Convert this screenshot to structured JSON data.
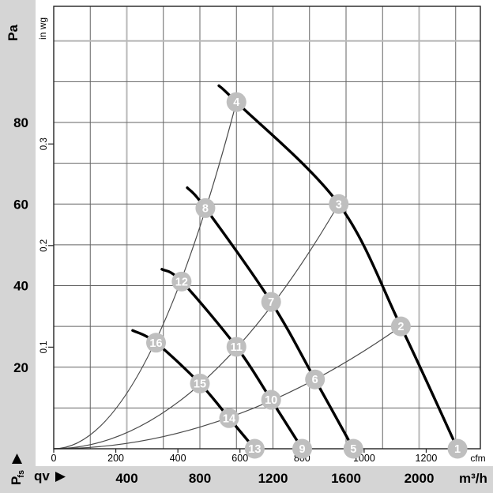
{
  "labels": {
    "y_primary_title": "Pa",
    "y_secondary_title": "in wg",
    "x_flow_symbol": "qv",
    "corner_main": "P",
    "corner_sub": "fs",
    "x_unit_primary": "cfm",
    "x_unit_secondary": "m³/h"
  },
  "colors": {
    "background": "#d5d5d5",
    "panel": "#ffffff",
    "grid_dark": "#636363",
    "grid_light": "#b9b9b9",
    "axis": "#222222",
    "fan_curve": "#000000",
    "system_line": "#4a4a4a",
    "marker_fill": "#bfbfbf",
    "marker_text": "#ffffff",
    "text": "#000000"
  },
  "chart_data": {
    "type": "line",
    "title": "",
    "x_axis": {
      "label": "qv",
      "primary_unit": "cfm",
      "secondary_unit": "m³/h",
      "cfm_ticks": [
        0,
        200,
        400,
        600,
        800,
        1000,
        1200
      ],
      "m3h_ticks": [
        400,
        800,
        1200,
        1600,
        2000
      ],
      "m3h_grid": {
        "step": 200,
        "max": 2200,
        "light": [
          400,
          2000
        ]
      },
      "m3h_range": [
        0,
        2335
      ]
    },
    "y_axis": {
      "label": "Pfs",
      "primary_unit": "Pa",
      "secondary_unit": "in wg",
      "pa_ticks": [
        80,
        60,
        40,
        20
      ],
      "inwg_ticks": [
        0.3,
        0.2,
        0.1
      ],
      "pa_grid": {
        "step": 10,
        "max": 100,
        "light": [
          100
        ]
      },
      "pa_range": [
        0,
        108
      ]
    },
    "unit_conversion": {
      "pa_per_inwg": 249.09,
      "cfm_per_m3h": 0.5886
    },
    "operating_points": [
      {
        "id": 1,
        "m3h": 2210,
        "pa": 0
      },
      {
        "id": 2,
        "m3h": 1900,
        "pa": 30
      },
      {
        "id": 3,
        "m3h": 1560,
        "pa": 60
      },
      {
        "id": 4,
        "m3h": 1000,
        "pa": 85
      },
      {
        "id": 5,
        "m3h": 1640,
        "pa": 0
      },
      {
        "id": 6,
        "m3h": 1430,
        "pa": 17
      },
      {
        "id": 7,
        "m3h": 1190,
        "pa": 36
      },
      {
        "id": 8,
        "m3h": 830,
        "pa": 59
      },
      {
        "id": 9,
        "m3h": 1360,
        "pa": 0
      },
      {
        "id": 10,
        "m3h": 1190,
        "pa": 12
      },
      {
        "id": 11,
        "m3h": 1000,
        "pa": 25
      },
      {
        "id": 12,
        "m3h": 700,
        "pa": 41
      },
      {
        "id": 13,
        "m3h": 1100,
        "pa": 0
      },
      {
        "id": 14,
        "m3h": 960,
        "pa": 7.5
      },
      {
        "id": 15,
        "m3h": 800,
        "pa": 16
      },
      {
        "id": 16,
        "m3h": 560,
        "pa": 26
      }
    ],
    "fan_curves": [
      {
        "name": "fan-curve-1",
        "marker_ids": [
          4,
          3,
          2,
          1
        ],
        "points": [
          [
            904,
            89
          ],
          [
            1000,
            85
          ],
          [
            1560,
            60
          ],
          [
            1900,
            30
          ],
          [
            2210,
            0
          ]
        ]
      },
      {
        "name": "fan-curve-2",
        "marker_ids": [
          8,
          7,
          6,
          5
        ],
        "points": [
          [
            731,
            64
          ],
          [
            830,
            59
          ],
          [
            1190,
            36
          ],
          [
            1430,
            17
          ],
          [
            1640,
            0
          ]
        ]
      },
      {
        "name": "fan-curve-3",
        "marker_ids": [
          12,
          11,
          10,
          9
        ],
        "points": [
          [
            592,
            44
          ],
          [
            700,
            41
          ],
          [
            1000,
            25
          ],
          [
            1190,
            12
          ],
          [
            1360,
            0
          ]
        ]
      },
      {
        "name": "fan-curve-4",
        "marker_ids": [
          16,
          15,
          14,
          13
        ],
        "points": [
          [
            432,
            29
          ],
          [
            560,
            26
          ],
          [
            800,
            16
          ],
          [
            960,
            7.5
          ],
          [
            1100,
            0
          ]
        ]
      }
    ],
    "system_lines": [
      {
        "top_marker": 4,
        "through_markers": [
          16,
          12,
          8,
          4
        ]
      },
      {
        "top_marker": 3,
        "through_markers": [
          15,
          11,
          7,
          3
        ]
      },
      {
        "top_marker": 2,
        "through_markers": [
          14,
          10,
          6,
          2
        ]
      }
    ]
  }
}
